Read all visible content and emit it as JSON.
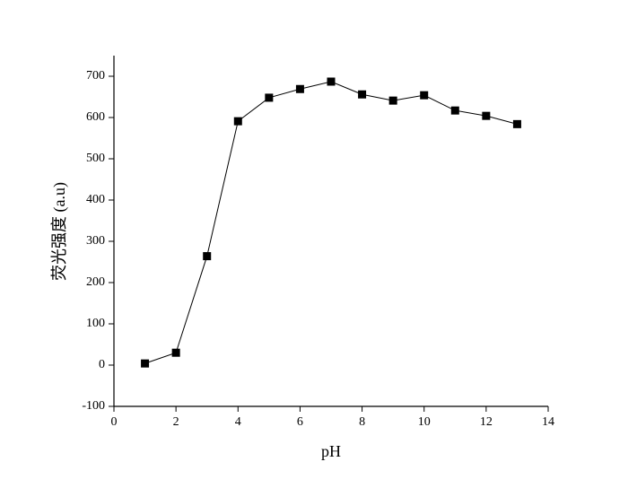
{
  "chart_data": {
    "type": "line",
    "xlabel": "pH",
    "ylabel": "荧光强度 (a.u)",
    "x": [
      1,
      2,
      3,
      4,
      5,
      6,
      7,
      8,
      9,
      10,
      11,
      12,
      13
    ],
    "values": [
      4,
      30,
      264,
      591,
      648,
      669,
      687,
      656,
      641,
      654,
      617,
      604,
      584
    ],
    "color": "#000000",
    "xlim": [
      0,
      14
    ],
    "xticks": [
      0,
      2,
      4,
      6,
      8,
      10,
      12,
      14
    ],
    "ylim": [
      -100,
      750
    ],
    "yticks": [
      -100,
      0,
      100,
      200,
      300,
      400,
      500,
      600,
      700
    ]
  }
}
